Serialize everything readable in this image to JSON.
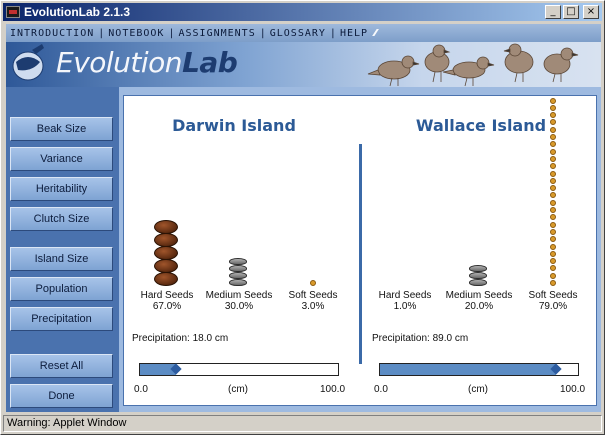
{
  "window": {
    "title": "EvolutionLab 2.1.3",
    "min_glyph": "_",
    "max_glyph": "□",
    "close_glyph": "×"
  },
  "menu": {
    "items": [
      "INTRODUCTION",
      "NOTEBOOK",
      "ASSIGNMENTS",
      "GLOSSARY",
      "HELP"
    ]
  },
  "logo": {
    "part1": "Evolution",
    "part2": "Lab"
  },
  "sidebar": {
    "buttons": [
      "Beak Size",
      "Variance",
      "Heritability",
      "Clutch Size",
      "Island Size",
      "Population",
      "Precipitation",
      "Reset All",
      "Done"
    ]
  },
  "islands": [
    {
      "name": "Darwin Island",
      "seeds": [
        {
          "label": "Hard Seeds",
          "pct": "67.0%",
          "type": "hard",
          "count": 5
        },
        {
          "label": "Medium Seeds",
          "pct": "30.0%",
          "type": "medium",
          "count": 4
        },
        {
          "label": "Soft Seeds",
          "pct": "3.0%",
          "type": "soft",
          "count": 1
        }
      ],
      "precipitation": "Precipitation: 18.0 cm",
      "slider_fraction": 0.18,
      "axis_min": "0.0",
      "axis_unit": "(cm)",
      "axis_max": "100.0"
    },
    {
      "name": "Wallace Island",
      "seeds": [
        {
          "label": "Hard Seeds",
          "pct": "1.0%",
          "type": "hard",
          "count": 0
        },
        {
          "label": "Medium Seeds",
          "pct": "20.0%",
          "type": "medium",
          "count": 3
        },
        {
          "label": "Soft Seeds",
          "pct": "79.0%",
          "type": "soft",
          "count": 26
        }
      ],
      "precipitation": "Precipitation: 89.0 cm",
      "slider_fraction": 0.89,
      "axis_min": "0.0",
      "axis_unit": "(cm)",
      "axis_max": "100.0"
    }
  ],
  "status": {
    "text": "Warning: Applet Window"
  },
  "colors": {
    "accent": "#2c5a96",
    "sidebar": "#4a72ae",
    "slider_fill": "#5c8cc4"
  }
}
